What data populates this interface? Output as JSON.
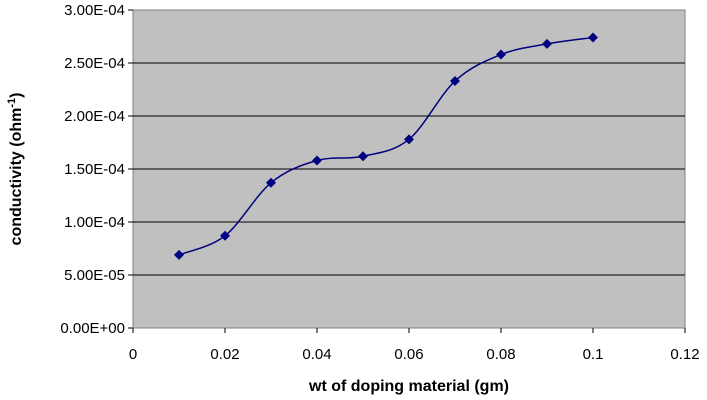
{
  "chart_data": {
    "type": "scatter",
    "smooth_line": true,
    "xlabel": "wt of doping material (gm)",
    "ylabel": "conductivity (ohm",
    "ylabel_sup": "-1",
    "ylabel_close": ")",
    "xlim": [
      0,
      0.12
    ],
    "ylim": [
      0,
      0.0003
    ],
    "x_ticks": [
      "0",
      "0.02",
      "0.04",
      "0.06",
      "0.08",
      "0.1",
      "0.12"
    ],
    "y_ticks": [
      "0.00E+00",
      "5.00E-05",
      "1.00E-04",
      "1.50E-04",
      "2.00E-04",
      "2.50E-04",
      "3.00E-04"
    ],
    "grid": "horizontal",
    "legend": "none",
    "series": [
      {
        "x": [
          0.01,
          0.02,
          0.03,
          0.04,
          0.05,
          0.06,
          0.07,
          0.08,
          0.09,
          0.1
        ],
        "y": [
          6.9e-05,
          8.7e-05,
          0.000137,
          0.000158,
          0.000162,
          0.000178,
          0.000233,
          0.000258,
          0.000268,
          0.000274
        ]
      }
    ],
    "colors": {
      "plot_background": "#c0c0c0",
      "series": "#000080",
      "gridline": "#000000"
    }
  }
}
